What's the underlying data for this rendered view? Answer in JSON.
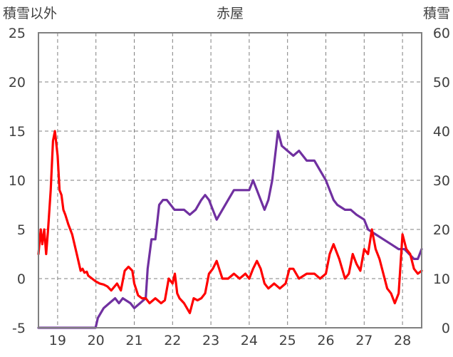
{
  "chart_data": {
    "type": "line",
    "title": "赤屋",
    "ylabel_left": "積雪以外",
    "ylabel_right": "積雪",
    "x_ticks": [
      "19",
      "20",
      "21",
      "22",
      "23",
      "24",
      "25",
      "26",
      "27",
      "28"
    ],
    "x_range": [
      18.5,
      28.5
    ],
    "y_left": {
      "ticks": [
        25,
        20,
        15,
        10,
        5,
        0,
        -5
      ],
      "range": [
        -5,
        25
      ]
    },
    "y_right": {
      "ticks": [
        60,
        50,
        40,
        30,
        20,
        10,
        0
      ],
      "range": [
        0,
        60
      ]
    },
    "grid": {
      "vertical": "dashed",
      "horizontal": "dashed"
    },
    "series": [
      {
        "axis": "left",
        "color": "#ff0000",
        "x": [
          18.5,
          18.56,
          18.6,
          18.65,
          18.7,
          18.75,
          18.82,
          18.88,
          18.93,
          19.0,
          19.05,
          19.1,
          19.15,
          19.2,
          19.28,
          19.38,
          19.5,
          19.6,
          19.65,
          19.7,
          19.76,
          19.8,
          19.9,
          20.0,
          20.1,
          20.2,
          20.3,
          20.4,
          20.55,
          20.65,
          20.75,
          20.85,
          20.95,
          21.0,
          21.1,
          21.2,
          21.3,
          21.4,
          21.55,
          21.7,
          21.8,
          21.9,
          22.0,
          22.06,
          22.12,
          22.18,
          22.3,
          22.45,
          22.55,
          22.65,
          22.75,
          22.85,
          22.95,
          23.05,
          23.15,
          23.3,
          23.45,
          23.6,
          23.75,
          23.9,
          24.0,
          24.1,
          24.2,
          24.3,
          24.4,
          24.5,
          24.65,
          24.8,
          24.95,
          25.05,
          25.15,
          25.3,
          25.5,
          25.7,
          25.85,
          26.0,
          26.1,
          26.2,
          26.35,
          26.5,
          26.6,
          26.7,
          26.8,
          26.9,
          27.0,
          27.1,
          27.2,
          27.3,
          27.4,
          27.5,
          27.6,
          27.7,
          27.8,
          27.9,
          28.0,
          28.1,
          28.2,
          28.3,
          28.4,
          28.5
        ],
        "values": [
          2.5,
          5,
          3.5,
          5,
          2.5,
          5,
          9,
          14,
          15,
          12.5,
          9,
          8.5,
          7,
          6.5,
          5.5,
          4.5,
          2.5,
          0.8,
          1,
          0.6,
          0.7,
          0.3,
          0,
          -0.3,
          -0.5,
          -0.6,
          -0.8,
          -1.2,
          -0.5,
          -1.2,
          0.8,
          1.2,
          0.8,
          -0.5,
          -1.7,
          -2,
          -2,
          -2.5,
          -2,
          -2.5,
          -2.2,
          0,
          -0.5,
          0.5,
          -1.5,
          -2,
          -2.5,
          -3.5,
          -2,
          -2.2,
          -2,
          -1.5,
          0.5,
          1,
          1.8,
          0,
          0,
          0.5,
          0,
          0.5,
          0,
          1,
          1.8,
          1,
          -0.5,
          -1,
          -0.5,
          -1,
          -0.5,
          1,
          1,
          0,
          0.5,
          0.5,
          0,
          0.5,
          2.5,
          3.5,
          2,
          0,
          0.5,
          2.5,
          1.5,
          0.8,
          3,
          2.5,
          5,
          3,
          2,
          0.5,
          -1,
          -1.5,
          -2.5,
          -1.5,
          4.5,
          3,
          2.5,
          1,
          0.5,
          0.8
        ]
      },
      {
        "axis": "right",
        "color": "#7030a0",
        "x": [
          18.5,
          19.0,
          19.5,
          19.99,
          20.05,
          20.2,
          20.35,
          20.5,
          20.6,
          20.7,
          20.9,
          21.0,
          21.15,
          21.3,
          21.35,
          21.45,
          21.55,
          21.65,
          21.75,
          21.85,
          21.95,
          22.05,
          22.15,
          22.3,
          22.45,
          22.6,
          22.75,
          22.85,
          22.95,
          23.05,
          23.15,
          23.3,
          23.45,
          23.6,
          23.75,
          23.9,
          24.0,
          24.1,
          24.2,
          24.3,
          24.4,
          24.5,
          24.6,
          24.75,
          24.85,
          25.0,
          25.15,
          25.3,
          25.4,
          25.5,
          25.7,
          25.85,
          26.0,
          26.1,
          26.2,
          26.3,
          26.5,
          26.65,
          26.8,
          27.0,
          27.1,
          27.3,
          27.5,
          27.7,
          27.9,
          28.05,
          28.3,
          28.4,
          28.5
        ],
        "values": [
          0,
          0,
          0,
          0,
          2,
          4,
          5,
          6,
          5,
          6,
          5,
          4,
          5,
          6,
          12,
          18,
          18,
          25,
          26,
          26,
          25,
          24,
          24,
          24,
          23,
          24,
          26,
          27,
          26,
          24,
          22,
          24,
          26,
          28,
          28,
          28,
          28,
          30,
          28,
          26,
          24,
          26,
          30,
          40,
          37,
          36,
          35,
          36,
          35,
          34,
          34,
          32,
          30,
          28,
          26,
          25,
          24,
          24,
          23,
          22,
          20,
          19,
          18,
          17,
          16,
          16,
          14,
          14,
          16
        ]
      }
    ]
  }
}
